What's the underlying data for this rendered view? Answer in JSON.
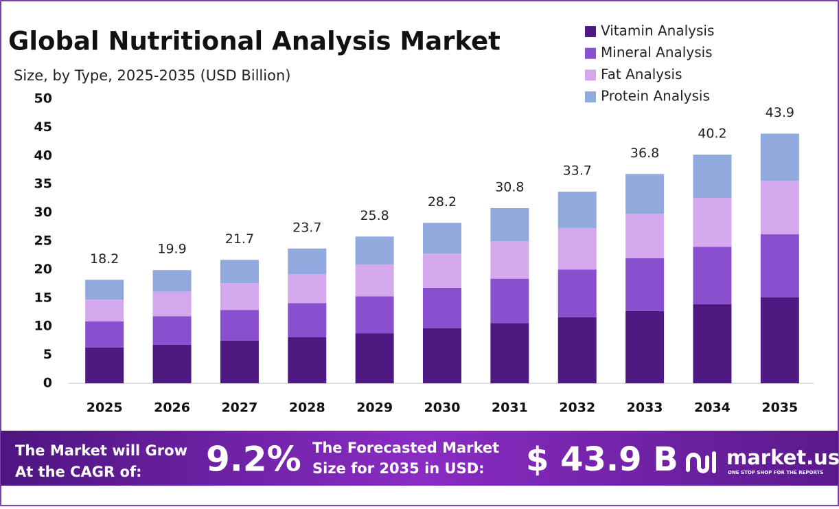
{
  "chart_data": {
    "type": "stacked_bar",
    "title": "Global Nutritional Analysis Market",
    "subtitle": "Size, by Type, 2025-2035 (USD Billion)",
    "categories": [
      "2025",
      "2026",
      "2027",
      "2028",
      "2029",
      "2030",
      "2031",
      "2032",
      "2033",
      "2034",
      "2035"
    ],
    "series": [
      {
        "name": "Vitamin Analysis",
        "color": "#4e1a82",
        "values": [
          6.3,
          6.8,
          7.5,
          8.1,
          8.8,
          9.7,
          10.6,
          11.6,
          12.7,
          13.9,
          15.1
        ]
      },
      {
        "name": "Mineral Analysis",
        "color": "#8a4fcf",
        "values": [
          4.6,
          5.0,
          5.4,
          6.0,
          6.5,
          7.1,
          7.8,
          8.4,
          9.3,
          10.1,
          11.1
        ]
      },
      {
        "name": "Fat Analysis",
        "color": "#d4a8ec",
        "values": [
          3.8,
          4.3,
          4.7,
          5.1,
          5.6,
          6.0,
          6.6,
          7.3,
          7.8,
          8.6,
          9.4
        ]
      },
      {
        "name": "Protein Analysis",
        "color": "#91a9dd",
        "values": [
          3.5,
          3.8,
          4.1,
          4.5,
          4.9,
          5.4,
          5.8,
          6.4,
          7.0,
          7.6,
          8.3
        ]
      }
    ],
    "totals": [
      18.2,
      19.9,
      21.7,
      23.7,
      25.8,
      28.2,
      30.8,
      33.7,
      36.8,
      40.2,
      43.9
    ],
    "ylim": [
      0,
      50
    ],
    "yticks": [
      0,
      5,
      10,
      15,
      20,
      25,
      30,
      35,
      40,
      45,
      50
    ],
    "grid": false,
    "legend": "top-right"
  },
  "footer": {
    "growth_line1": "The Market will Grow",
    "growth_line2": "At the CAGR of:",
    "cagr": "9.2%",
    "forecast_line1": "The Forecasted Market",
    "forecast_line2": "Size for 2035 in USD:",
    "forecast": "$ 43.9 B",
    "brand": "market.us",
    "tagline": "ONE STOP SHOP FOR THE REPORTS"
  }
}
